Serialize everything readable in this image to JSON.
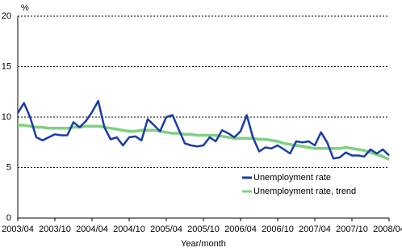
{
  "chart_data": {
    "type": "line",
    "y_label": "%",
    "x_label": "Year/month",
    "categories": [
      "2003/04",
      null,
      null,
      null,
      null,
      null,
      "2003/10",
      null,
      null,
      null,
      null,
      null,
      "2004/04",
      null,
      null,
      null,
      null,
      null,
      "2004/10",
      null,
      null,
      null,
      null,
      null,
      "2005/04",
      null,
      null,
      null,
      null,
      null,
      "2005/10",
      null,
      null,
      null,
      null,
      null,
      "2006/04",
      null,
      null,
      null,
      null,
      null,
      "2006/10",
      null,
      null,
      null,
      null,
      null,
      "2007/04",
      null,
      null,
      null,
      null,
      null,
      "2007/10",
      null,
      null,
      null,
      null,
      null,
      "2008/04"
    ],
    "series": [
      {
        "name": "Unemployment rate",
        "color": "#1a3ca6",
        "values": [
          10.4,
          11.4,
          10.0,
          8.0,
          7.7,
          8.0,
          8.3,
          8.2,
          8.2,
          9.5,
          9.0,
          9.6,
          10.5,
          11.6,
          9.0,
          7.8,
          8.0,
          7.2,
          8.0,
          8.1,
          7.7,
          9.8,
          9.2,
          8.6,
          10.0,
          10.2,
          8.8,
          7.4,
          7.2,
          7.1,
          7.2,
          8.0,
          7.6,
          8.7,
          8.4,
          8.0,
          8.6,
          10.2,
          8.0,
          6.6,
          7.0,
          6.9,
          7.2,
          6.8,
          6.4,
          7.6,
          7.5,
          7.6,
          7.2,
          8.5,
          7.5,
          5.9,
          6.0,
          6.5,
          6.2,
          6.2,
          6.1,
          6.8,
          6.4,
          6.8,
          6.2
        ]
      },
      {
        "name": "Unemployment rate, trend",
        "color": "#80d080",
        "values": [
          9.2,
          9.2,
          9.1,
          9.0,
          9.0,
          8.9,
          8.9,
          8.9,
          8.9,
          9.0,
          9.0,
          9.1,
          9.1,
          9.1,
          9.0,
          8.9,
          8.8,
          8.7,
          8.6,
          8.6,
          8.7,
          8.7,
          8.7,
          8.6,
          8.5,
          8.4,
          8.4,
          8.3,
          8.3,
          8.2,
          8.2,
          8.2,
          8.2,
          8.1,
          8.0,
          7.9,
          7.9,
          7.9,
          7.9,
          7.8,
          7.8,
          7.7,
          7.6,
          7.4,
          7.3,
          7.2,
          7.1,
          7.0,
          6.9,
          6.9,
          6.9,
          6.9,
          6.9,
          7.0,
          6.9,
          6.8,
          6.7,
          6.5,
          6.3,
          6.1,
          5.8
        ]
      }
    ],
    "ylim": [
      0,
      20
    ],
    "yticks": [
      0,
      5,
      10,
      15,
      20
    ],
    "grid": true,
    "legend": "lower right"
  }
}
